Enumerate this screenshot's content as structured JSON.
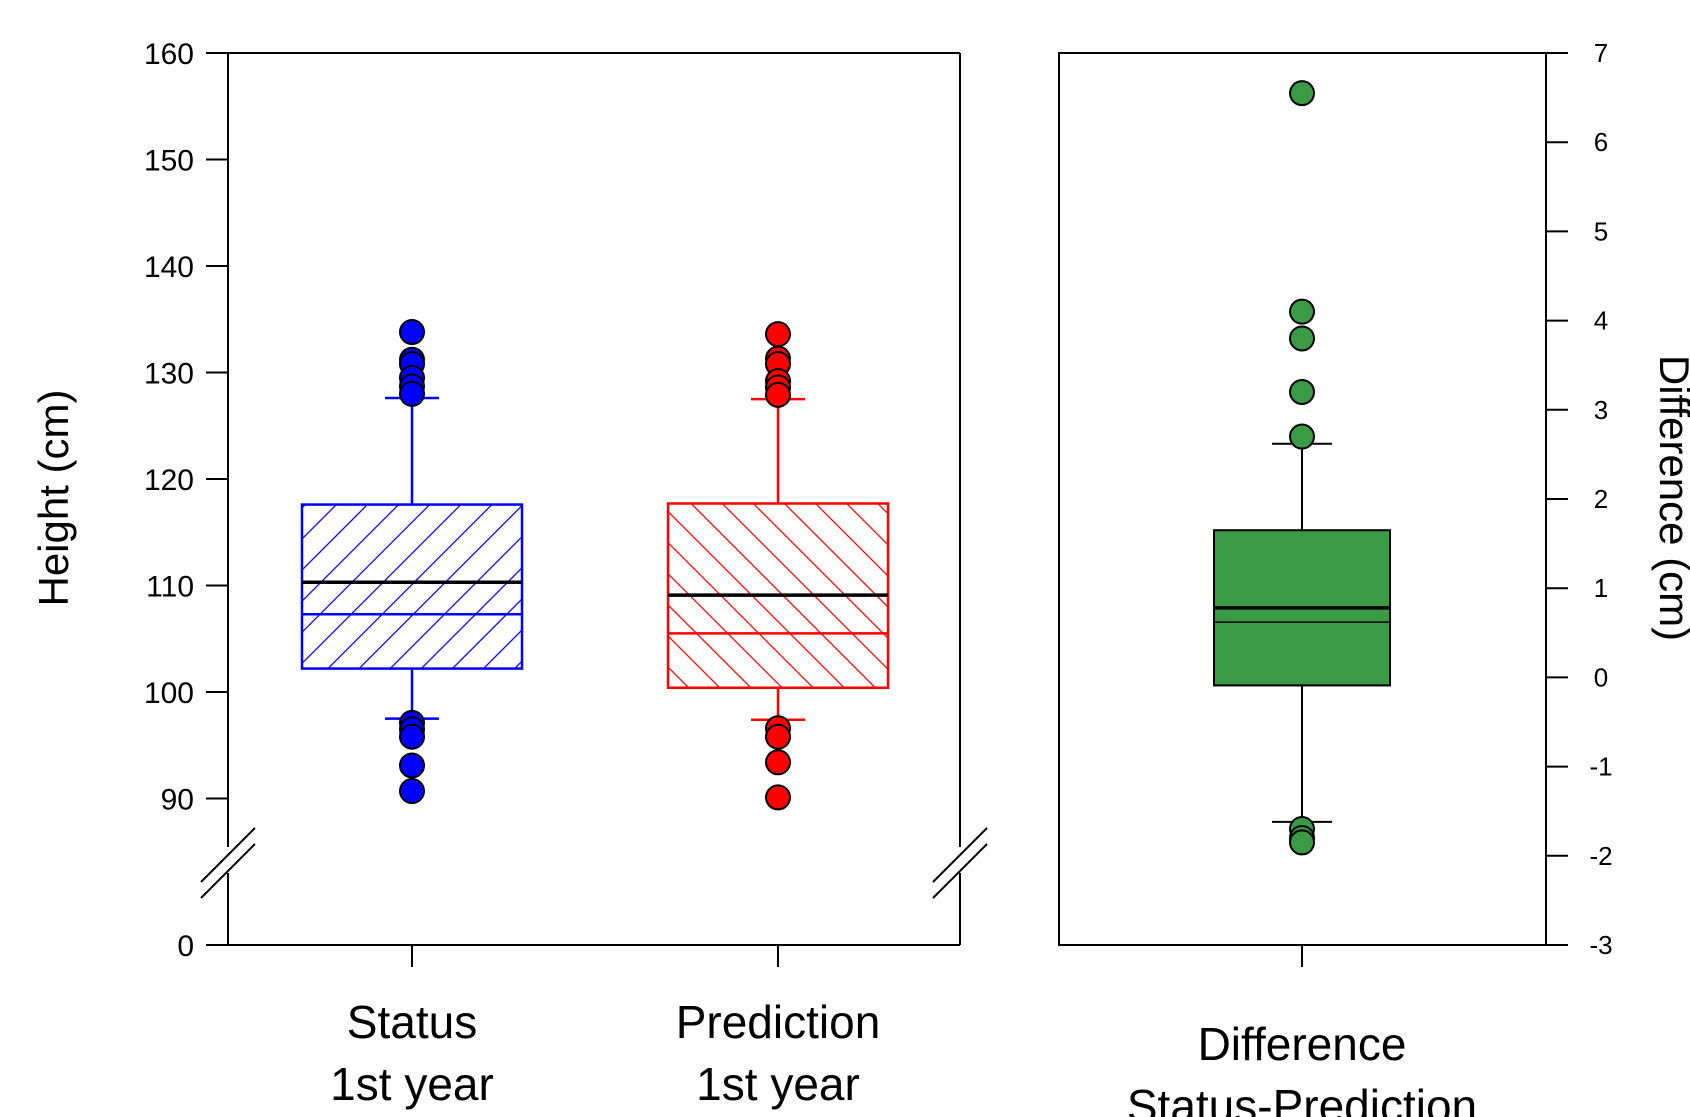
{
  "chart_data": [
    {
      "type": "box",
      "ylabel": "Height (cm)",
      "ylim": [
        85,
        160
      ],
      "y_axis_break": {
        "below": 85,
        "baseline_tick": 0
      },
      "yticks": [
        160,
        150,
        140,
        130,
        120,
        110,
        100,
        90,
        0
      ],
      "categories": [
        "Status\n1st year",
        "Prediction\n1st year"
      ],
      "category_lines": [
        [
          "Status",
          "1st year"
        ],
        [
          "Prediction",
          "1st year"
        ]
      ],
      "series": [
        {
          "color": "#0000ff",
          "fill": "diagonal-hatch (/)",
          "whisker_low": 97.5,
          "q1": 102.2,
          "mean": 107.3,
          "median": 110.3,
          "q3": 117.6,
          "whisker_high": 127.6,
          "outliers": [
            133.8,
            131.2,
            130.8,
            129.5,
            128.7,
            128.0,
            97.1,
            96.5,
            95.8,
            93.1,
            90.7
          ]
        },
        {
          "color": "#ff0000",
          "fill": "diagonal-hatch (\\)",
          "whisker_low": 97.4,
          "q1": 100.4,
          "mean": 105.5,
          "median": 109.1,
          "q3": 117.7,
          "whisker_high": 127.5,
          "outliers": [
            133.6,
            131.3,
            130.8,
            129.2,
            128.6,
            127.9,
            96.6,
            95.8,
            93.4,
            90.1
          ]
        }
      ]
    },
    {
      "type": "box",
      "ylabel": "Difference (cm)",
      "y_axis_side": "right",
      "ylim": [
        -3,
        7
      ],
      "yticks": [
        7,
        6,
        5,
        4,
        3,
        2,
        1,
        0,
        -1,
        -2,
        -3
      ],
      "categories": [
        "Difference\nStatus-Prediction"
      ],
      "category_lines": [
        [
          "Difference",
          "Status-Prediction"
        ]
      ],
      "series": [
        {
          "color": "#3a9a46",
          "fill": "solid",
          "whisker_low": -1.62,
          "q1": -0.09,
          "mean": 0.62,
          "median": 0.78,
          "q3": 1.65,
          "whisker_high": 2.62,
          "outliers": [
            6.55,
            4.1,
            3.8,
            3.2,
            2.7,
            -1.7,
            -1.8,
            -1.85
          ]
        }
      ]
    }
  ]
}
